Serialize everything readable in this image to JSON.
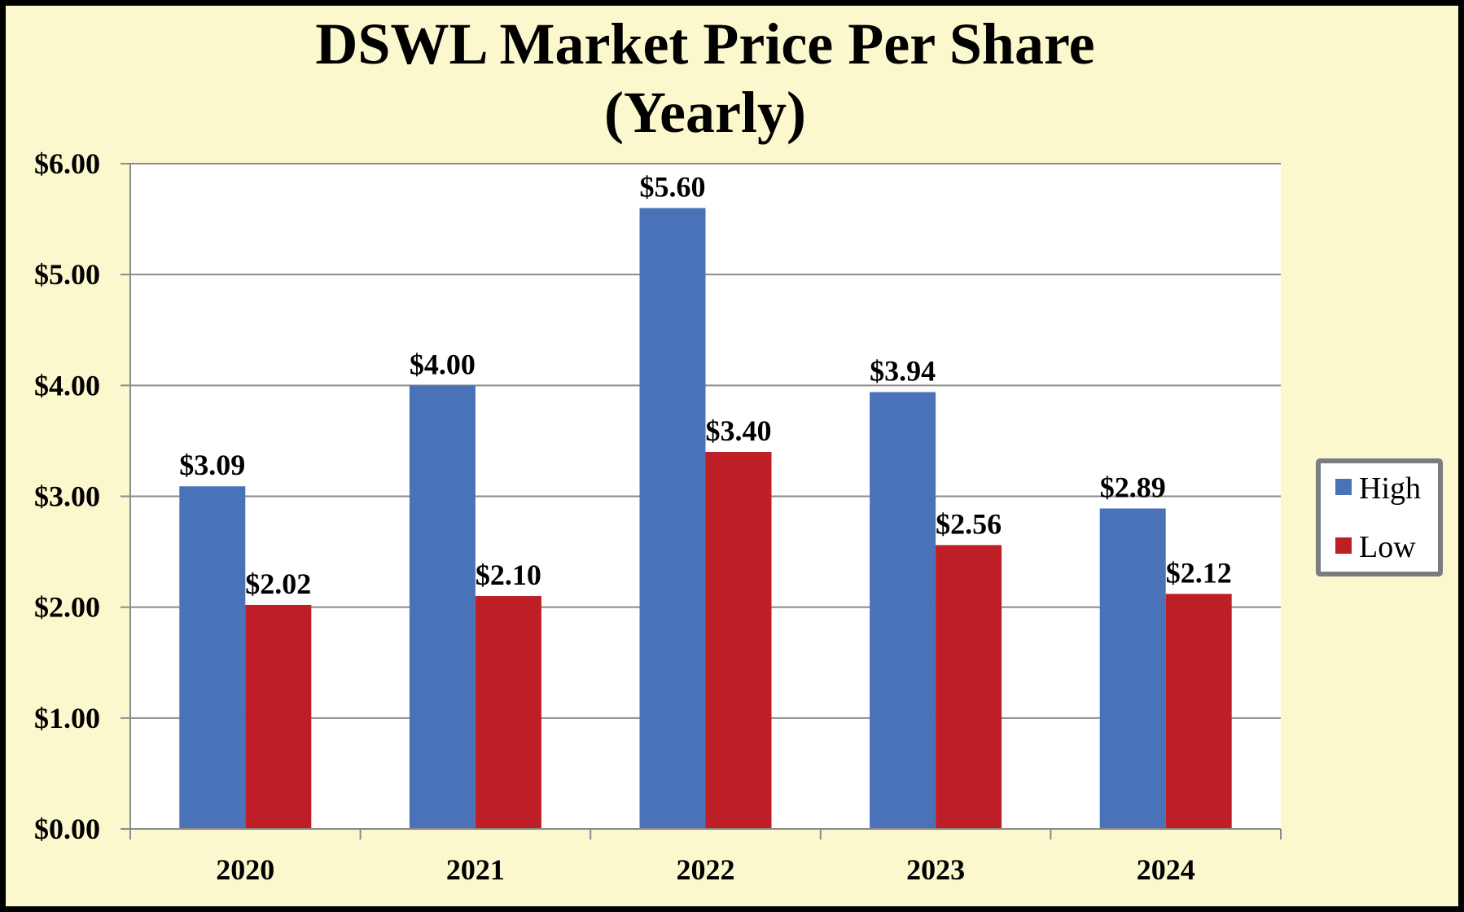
{
  "chart_data": {
    "type": "bar",
    "title": [
      "DSWL Market Price Per Share",
      "(Yearly)"
    ],
    "xlabel": "",
    "ylabel": "",
    "categories": [
      "2020",
      "2021",
      "2022",
      "2023",
      "2024"
    ],
    "series": [
      {
        "name": "High",
        "color": "#4a72b8",
        "values": [
          3.09,
          4.0,
          5.6,
          3.94,
          2.89
        ],
        "labels": [
          "$3.09",
          "$4.00",
          "$5.60",
          "$3.94",
          "$2.89"
        ]
      },
      {
        "name": "Low",
        "color": "#be1e25",
        "values": [
          2.02,
          2.1,
          3.4,
          2.56,
          2.12
        ],
        "labels": [
          "$2.02",
          "$2.10",
          "$3.40",
          "$2.56",
          "$2.12"
        ]
      }
    ],
    "ylim": [
      0,
      6
    ],
    "yticks": [
      0,
      1,
      2,
      3,
      4,
      5,
      6
    ],
    "ytick_labels": [
      "$0.00",
      "$1.00",
      "$2.00",
      "$3.00",
      "$4.00",
      "$5.00",
      "$6.00"
    ],
    "grid": true,
    "legend_position": "right"
  }
}
